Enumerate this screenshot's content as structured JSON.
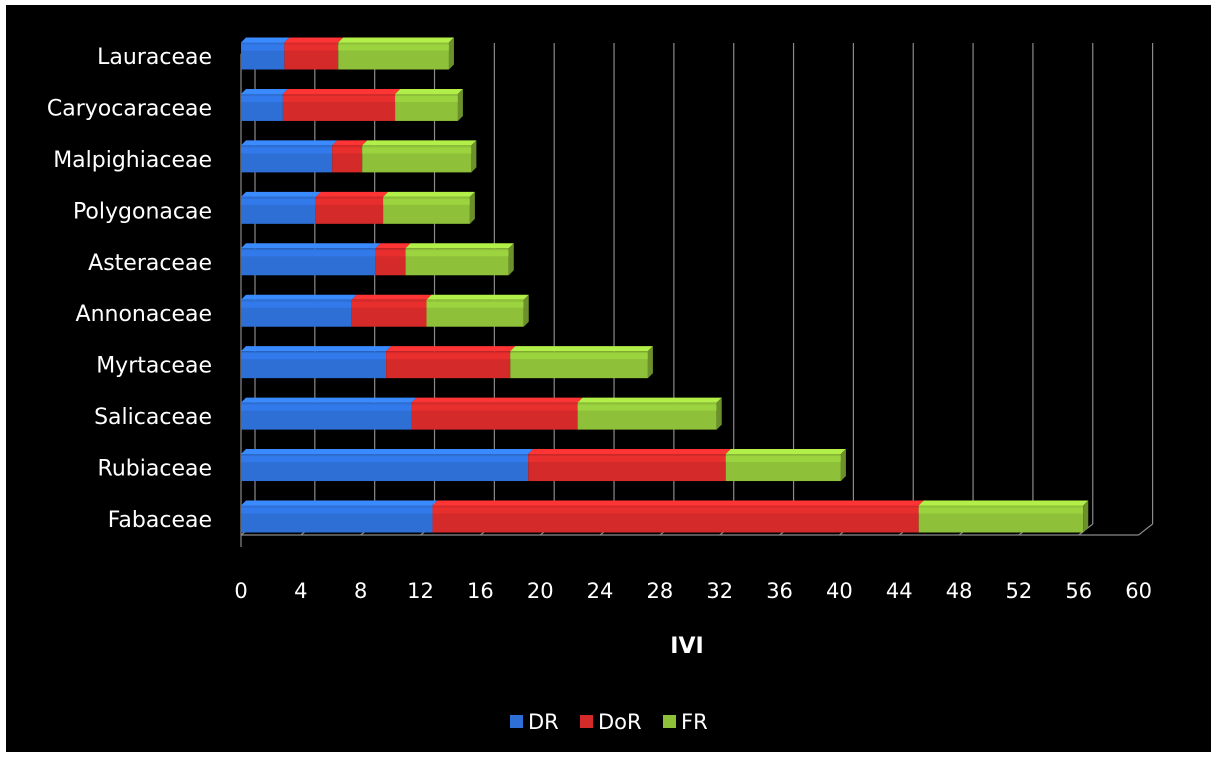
{
  "chart_data": {
    "type": "bar",
    "orientation": "horizontal",
    "stacked": true,
    "categories": [
      "Fabaceae",
      "Rubiaceae",
      "Salicaceae",
      "Myrtaceae",
      "Annonaceae",
      "Asteraceae",
      "Polygonacae",
      "Malpighiaceae",
      "Caryocaraceae",
      "Lauraceae"
    ],
    "series": [
      {
        "name": "DR",
        "color": "#2e6fd6",
        "values": [
          12.8,
          19.2,
          11.4,
          9.7,
          7.4,
          9.0,
          5.0,
          6.1,
          2.8,
          2.9
        ]
      },
      {
        "name": "DoR",
        "color": "#d42a2a",
        "values": [
          32.5,
          13.2,
          11.1,
          8.3,
          5.0,
          2.0,
          4.5,
          2.0,
          7.5,
          3.6
        ]
      },
      {
        "name": "FR",
        "color": "#8ec03a",
        "values": [
          11.0,
          7.7,
          9.3,
          9.2,
          6.5,
          6.9,
          5.8,
          7.3,
          4.2,
          7.4
        ]
      }
    ],
    "xlabel": "IVI",
    "ylabel": "",
    "xlim": [
      0,
      60
    ],
    "xticks": [
      "0",
      "4",
      "8",
      "12",
      "16",
      "20",
      "24",
      "28",
      "32",
      "36",
      "40",
      "44",
      "48",
      "52",
      "56",
      "60"
    ],
    "grid": true,
    "legend_position": "bottom",
    "background": "#000000"
  }
}
